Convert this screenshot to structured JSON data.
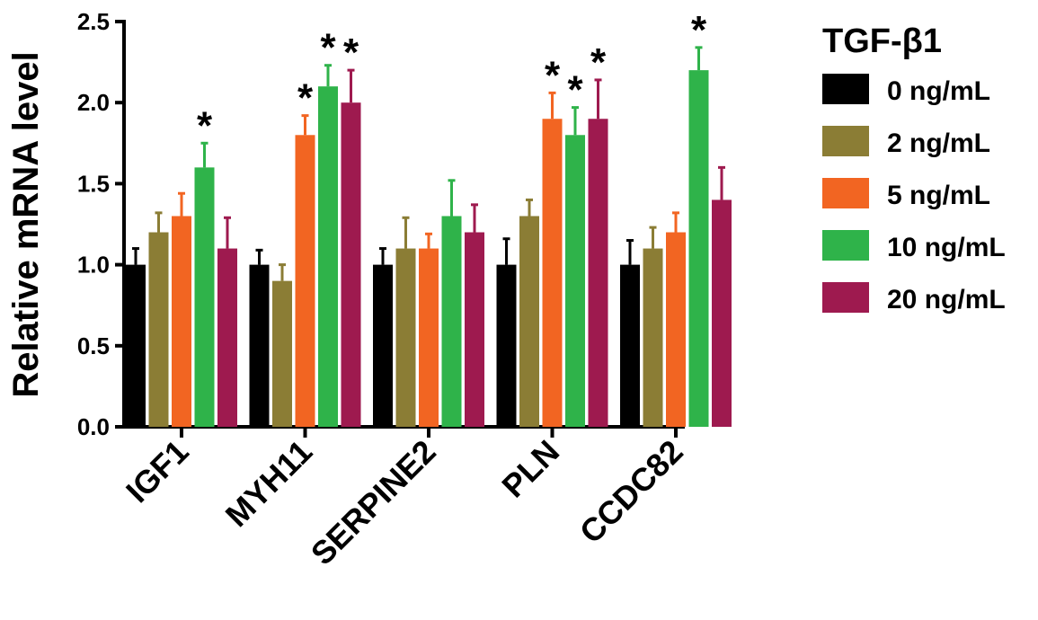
{
  "chart_data": {
    "type": "bar",
    "title": "",
    "xlabel": "",
    "ylabel": "Relative mRNA level",
    "ylim": [
      0,
      2.5
    ],
    "yticks": [
      "0.0",
      "0.5",
      "1.0",
      "1.5",
      "2.0",
      "2.5"
    ],
    "grid": false,
    "legend_position": "right",
    "legend_title": "TGF-β1",
    "categories": [
      "IGF1",
      "MYH11",
      "SERPINE2",
      "PLN",
      "CCDC82"
    ],
    "series": [
      {
        "name": "0 ng/mL",
        "color": "#000000",
        "values": [
          1.0,
          1.0,
          1.0,
          1.0,
          1.0
        ],
        "error_upper": [
          1.1,
          1.09,
          1.1,
          1.16,
          1.15
        ],
        "significant": [
          false,
          false,
          false,
          false,
          false
        ]
      },
      {
        "name": "2 ng/mL",
        "color": "#8b7d35",
        "values": [
          1.2,
          0.9,
          1.1,
          1.3,
          1.1
        ],
        "error_upper": [
          1.32,
          1.0,
          1.29,
          1.4,
          1.23
        ],
        "significant": [
          false,
          false,
          false,
          false,
          false
        ]
      },
      {
        "name": "5 ng/mL",
        "color": "#f26522",
        "values": [
          1.3,
          1.8,
          1.1,
          1.9,
          1.2
        ],
        "error_upper": [
          1.44,
          1.92,
          1.19,
          2.06,
          1.32
        ],
        "significant": [
          false,
          true,
          false,
          true,
          false
        ]
      },
      {
        "name": "10 ng/mL",
        "color": "#2fb34a",
        "values": [
          1.6,
          2.1,
          1.3,
          1.8,
          2.2
        ],
        "error_upper": [
          1.75,
          2.23,
          1.52,
          1.97,
          2.34
        ],
        "significant": [
          true,
          true,
          false,
          true,
          true
        ]
      },
      {
        "name": "20 ng/mL",
        "color": "#9e1a4f",
        "values": [
          1.1,
          2.0,
          1.2,
          1.9,
          1.4
        ],
        "error_upper": [
          1.29,
          2.2,
          1.37,
          2.14,
          1.6
        ],
        "significant": [
          false,
          true,
          false,
          true,
          false
        ]
      }
    ],
    "significance_marker": "*"
  }
}
